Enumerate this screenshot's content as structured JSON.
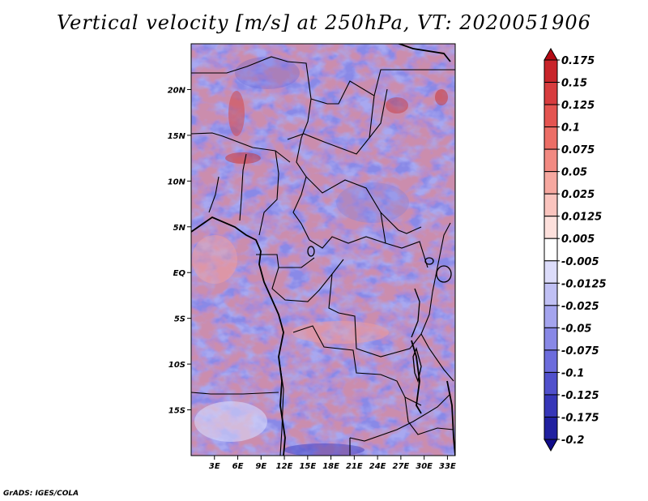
{
  "title": "Vertical velocity [m/s] at 250hPa, VT: 2020051906",
  "credit": "GrADS: IGES/COLA",
  "chart_data": {
    "type": "heatmap",
    "variable": "Vertical velocity",
    "units": "m/s",
    "level": "250hPa",
    "valid_time": "2020051906",
    "lon_range": [
      0,
      34
    ],
    "lat_range": [
      -20,
      25
    ],
    "x_ticks": [
      "3E",
      "6E",
      "9E",
      "12E",
      "15E",
      "18E",
      "21E",
      "24E",
      "27E",
      "30E",
      "33E"
    ],
    "x_tick_values": [
      3,
      6,
      9,
      12,
      15,
      18,
      21,
      24,
      27,
      30,
      33
    ],
    "y_ticks": [
      "20N",
      "15N",
      "10N",
      "5N",
      "EQ",
      "5S",
      "10S",
      "15S"
    ],
    "y_tick_values": [
      20,
      15,
      10,
      5,
      0,
      -5,
      -10,
      -15
    ],
    "colorbar": {
      "labels": [
        "0.175",
        "0.15",
        "0.125",
        "0.1",
        "0.075",
        "0.05",
        "0.025",
        "0.0125",
        "0.005",
        "-0.005",
        "-0.0125",
        "-0.025",
        "-0.05",
        "-0.075",
        "-0.1",
        "-0.125",
        "-0.175",
        "-0.2"
      ],
      "colors": [
        "#b40a14",
        "#c8242a",
        "#d73c3e",
        "#e45450",
        "#ec6e66",
        "#f28a82",
        "#f6a8a0",
        "#fac4be",
        "#fde0dc",
        "#ffffff",
        "#dcdcfa",
        "#c0c0f4",
        "#a4a4ee",
        "#8888e6",
        "#6c6cdc",
        "#5050cc",
        "#3636b8",
        "#2020a0",
        "#100c8a"
      ]
    }
  }
}
